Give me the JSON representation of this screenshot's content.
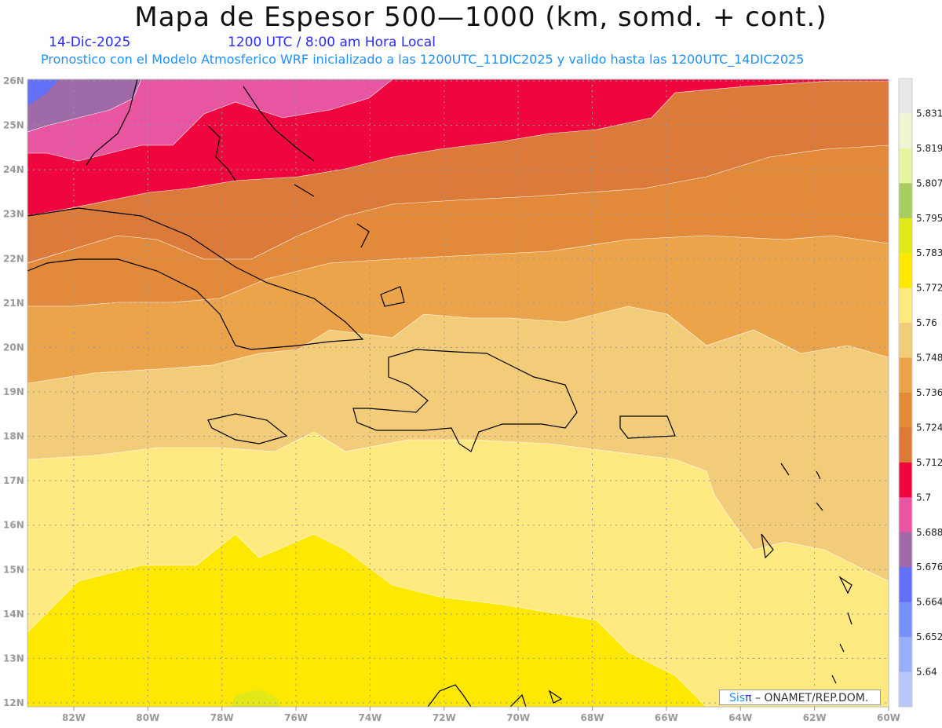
{
  "title": "Mapa de Espesor 500—1000 (km, somd. + cont.)",
  "date": "14-Dic-2025",
  "time": "1200 UTC / 8:00 am Hora Local",
  "subtitle": "Pronostico con el Modelo Atmosferico WRF inicializado a las 1200UTC_11DIC2025 y valido hasta las  1200UTC_14DIC2025",
  "lon_labels": [
    "82W",
    "80W",
    "78W",
    "76W",
    "74W",
    "72W",
    "70W",
    "68W",
    "66W",
    "64W",
    "62W",
    "60W"
  ],
  "lat_labels": [
    "26N",
    "25N",
    "24N",
    "23N",
    "22N",
    "21N",
    "20N",
    "19N",
    "18N",
    "17N",
    "16N",
    "15N",
    "14N",
    "13N",
    "12N"
  ],
  "colorbar": {
    "labels": [
      "5.831",
      "5.819",
      "5.807",
      "5.795",
      "5.783",
      "5.772",
      "5.76",
      "5.748",
      "5.736",
      "5.724",
      "5.712",
      "5.7",
      "5.688",
      "5.676",
      "5.664",
      "5.652",
      "5.64"
    ],
    "colors": [
      "#e8e8e8",
      "#eef5d2",
      "#e5f5a0",
      "#a8cc60",
      "#e0e818",
      "#ffe800",
      "#ffe980",
      "#f2cc78",
      "#eba44a",
      "#e38a3a",
      "#dc7a3a",
      "#f0063e",
      "#e855a0",
      "#9e6aa8",
      "#6270f8",
      "#7890fa",
      "#98b0fb",
      "#b8c8fb"
    ]
  },
  "logo": {
    "sis": "Sis",
    "pi": "π",
    "text": " –  ONAMET/REP.DOM."
  }
}
